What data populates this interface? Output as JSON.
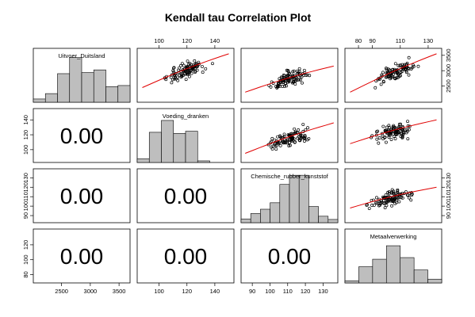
{
  "chart_data": {
    "type": "scatter",
    "subtype": "pairs-matrix",
    "title": "Kendall tau Correlation Plot",
    "variables": [
      {
        "name": "Uitvoer_Duitsland",
        "ticks": [
          2500,
          3000,
          3500
        ],
        "range": [
          2050,
          3650
        ],
        "hist_breaks": [
          2000,
          2200,
          2400,
          2600,
          2800,
          3000,
          3200,
          3400,
          3600
        ],
        "hist_heights": [
          0.06,
          0.16,
          0.53,
          0.83,
          0.55,
          0.6,
          0.29,
          0.31
        ]
      },
      {
        "name": "Voeding_dranken",
        "ticks": [
          100,
          120,
          140
        ],
        "range": [
          86,
          152
        ],
        "hist_breaks": [
          80,
          90,
          100,
          110,
          120,
          130,
          140,
          150,
          160
        ],
        "hist_heights": [
          0.07,
          0.56,
          0.78,
          0.54,
          0.58,
          0.03,
          0,
          0
        ]
      },
      {
        "name": "Chemische_rubber_kunststof",
        "ticks": [
          90,
          100,
          110,
          120,
          130
        ],
        "range": [
          85,
          137
        ],
        "hist_breaks": [
          85,
          90,
          95,
          100,
          105,
          110,
          115,
          120,
          125,
          130,
          135
        ],
        "hist_heights": [
          0.07,
          0.17,
          0.25,
          0.37,
          0.71,
          0.88,
          0.88,
          0.3,
          0.12,
          0.06
        ]
      },
      {
        "name": "Metaalverwerking",
        "ticks": [
          80,
          90,
          110,
          130
        ],
        "range": [
          72,
          138
        ],
        "hist_breaks": [
          70,
          80,
          90,
          100,
          110,
          120,
          130,
          140
        ],
        "hist_heights": [
          0.04,
          0.3,
          0.44,
          0.69,
          0.47,
          0.24,
          0.07
        ]
      }
    ],
    "tick_sides": {
      "top": [
        1,
        3
      ],
      "bottom": [
        0,
        1,
        2
      ],
      "left": [
        1,
        2,
        3
      ],
      "right": [
        0,
        2
      ]
    },
    "row_tick_overrides": {
      "3": [
        80,
        100,
        120
      ]
    },
    "correlations": [
      {
        "row": 1,
        "col": 0,
        "label": "0.00"
      },
      {
        "row": 2,
        "col": 0,
        "label": "0.00"
      },
      {
        "row": 2,
        "col": 1,
        "label": "0.00"
      },
      {
        "row": 3,
        "col": 0,
        "label": "0.00"
      },
      {
        "row": 3,
        "col": 1,
        "label": "0.00"
      },
      {
        "row": 3,
        "col": 2,
        "label": "0.00"
      }
    ],
    "scatter_relations": [
      {
        "row": 0,
        "col": 1,
        "fit": [
          [
            88,
            2450
          ],
          [
            150,
            3550
          ]
        ]
      },
      {
        "row": 0,
        "col": 2,
        "fit": [
          [
            86,
            2300
          ],
          [
            136,
            3150
          ]
        ]
      },
      {
        "row": 0,
        "col": 3,
        "fit": [
          [
            74,
            2300
          ],
          [
            136,
            3550
          ]
        ]
      },
      {
        "row": 1,
        "col": 2,
        "fit": [
          [
            86,
            95
          ],
          [
            136,
            136
          ]
        ]
      },
      {
        "row": 1,
        "col": 3,
        "fit": [
          [
            74,
            108
          ],
          [
            136,
            140
          ]
        ]
      },
      {
        "row": 2,
        "col": 3,
        "fit": [
          [
            74,
            98
          ],
          [
            136,
            120
          ]
        ]
      }
    ],
    "grid": false,
    "legend": "none"
  }
}
